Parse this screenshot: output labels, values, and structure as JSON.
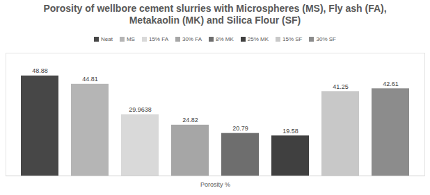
{
  "chart_data": {
    "type": "bar",
    "title": "Porosity of wellbore cement slurries with Microspheres (MS), Fly ash (FA), Metakaolin (MK) and Silica Flour (SF)",
    "categories": [
      "Porosity %"
    ],
    "series": [
      {
        "name": "Neat",
        "color": "#474747",
        "values": [
          48.88
        ]
      },
      {
        "name": "MS",
        "color": "#b5b5b5",
        "values": [
          44.81
        ]
      },
      {
        "name": "15% FA",
        "color": "#d9d9d9",
        "values": [
          29.9638
        ]
      },
      {
        "name": "30% FA",
        "color": "#a6a6a6",
        "values": [
          24.82
        ]
      },
      {
        "name": "8% MK",
        "color": "#6e6e6e",
        "values": [
          20.79
        ]
      },
      {
        "name": "25% MK",
        "color": "#404040",
        "values": [
          19.58
        ]
      },
      {
        "name": "15% SF",
        "color": "#c8c8c8",
        "values": [
          41.25
        ]
      },
      {
        "name": "30% SF",
        "color": "#8c8c8c",
        "values": [
          42.61
        ]
      }
    ],
    "ylim": [
      0,
      60
    ],
    "legend": "top",
    "data_labels": true,
    "tick_labels": "x"
  }
}
